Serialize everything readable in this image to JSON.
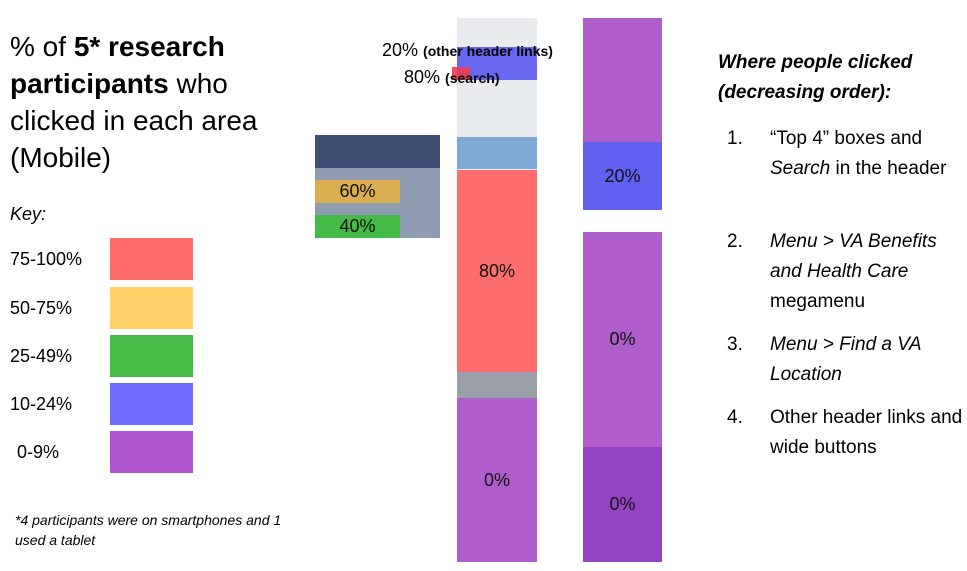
{
  "title": {
    "parts": [
      {
        "text": "% of ",
        "bold": false
      },
      {
        "text": "5* research participants",
        "bold": true
      },
      {
        "text": " who clicked in each area (Mobile)",
        "bold": false
      }
    ]
  },
  "key": {
    "label": "Key:",
    "items": [
      {
        "range": "75-100%",
        "color": "#ff6b6b"
      },
      {
        "range": "50-75%",
        "color": "#ffd166"
      },
      {
        "range": "25-49%",
        "color": "#47bd47"
      },
      {
        "range": "10-24%",
        "color": "#6f6bff"
      },
      {
        "range": "0-9%",
        "color": "#ad55cc"
      }
    ]
  },
  "footnote": "*4 participants were on smartphones and 1 used a tablet",
  "header_labels": [
    {
      "value": "20%",
      "note": "(other header links)"
    },
    {
      "value": "80%",
      "note": "(search)"
    }
  ],
  "overlays": {
    "menu_benefits": "60%",
    "menu_location": "40%",
    "top4": "80%",
    "middle_lower": "0%",
    "right_buttons": "20%",
    "right_mid": "0%",
    "right_low": "0%"
  },
  "list": {
    "heading": "Where people clicked (decreasing order):",
    "items": [
      {
        "number": "1.",
        "segments": [
          {
            "text": "“Top 4” boxes and ",
            "italic": false
          },
          {
            "text": "Search",
            "italic": true
          },
          {
            "text": " in the header",
            "italic": false
          }
        ]
      },
      {
        "number": "2.",
        "segments": [
          {
            "text": "Menu > VA Benefits and Health Care",
            "italic": true
          },
          {
            "text": " megamenu",
            "italic": false
          }
        ]
      },
      {
        "number": "3.",
        "segments": [
          {
            "text": "Menu > Find a VA Location",
            "italic": true
          }
        ]
      },
      {
        "number": "4.",
        "segments": [
          {
            "text": "Other header links and wide buttons",
            "italic": false
          }
        ]
      }
    ]
  }
}
